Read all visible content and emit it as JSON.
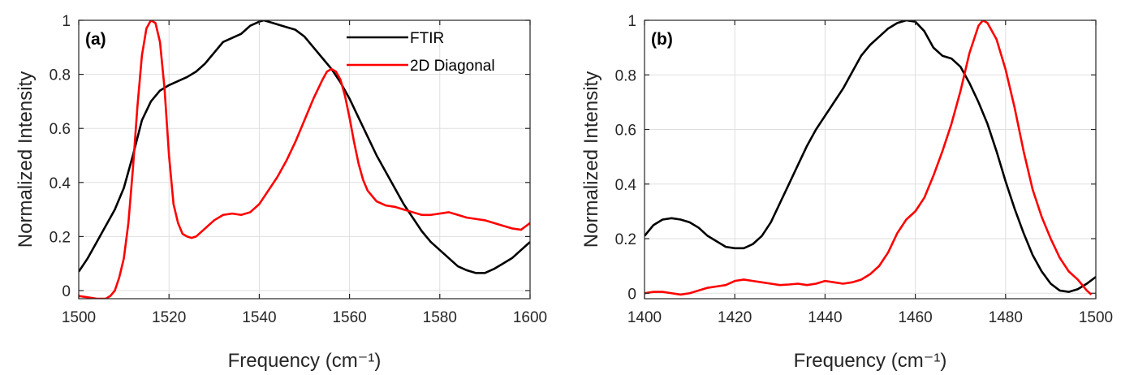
{
  "chart_data": [
    {
      "type": "line",
      "panel_label": "(a)",
      "xlabel": "Frequency (cm⁻¹)",
      "ylabel": "Normalized Intensity",
      "xlim": [
        1500,
        1600
      ],
      "ylim": [
        -0.03,
        1.0
      ],
      "xticks": [
        1500,
        1520,
        1540,
        1560,
        1580,
        1600
      ],
      "yticks": [
        0,
        0.2,
        0.4,
        0.6,
        0.8,
        1
      ],
      "ytick_labels": [
        "0",
        "0.2",
        "0.4",
        "0.6",
        "0.8",
        "1"
      ],
      "grid": true,
      "legend": "top-right",
      "series": [
        {
          "name": "FTIR",
          "color": "#000000",
          "x": [
            1500,
            1502,
            1504,
            1506,
            1508,
            1510,
            1512,
            1514,
            1516,
            1518,
            1520,
            1522,
            1524,
            1526,
            1528,
            1530,
            1532,
            1534,
            1536,
            1538,
            1540,
            1541,
            1542,
            1544,
            1546,
            1548,
            1550,
            1552,
            1554,
            1556,
            1558,
            1560,
            1562,
            1564,
            1566,
            1568,
            1570,
            1572,
            1574,
            1576,
            1578,
            1580,
            1582,
            1584,
            1586,
            1588,
            1590,
            1592,
            1594,
            1596,
            1598,
            1600
          ],
          "y": [
            0.07,
            0.12,
            0.18,
            0.24,
            0.3,
            0.38,
            0.5,
            0.63,
            0.7,
            0.74,
            0.76,
            0.775,
            0.79,
            0.81,
            0.84,
            0.88,
            0.92,
            0.935,
            0.95,
            0.98,
            0.995,
            1.0,
            0.995,
            0.985,
            0.975,
            0.965,
            0.94,
            0.9,
            0.86,
            0.82,
            0.77,
            0.71,
            0.64,
            0.57,
            0.5,
            0.44,
            0.38,
            0.32,
            0.27,
            0.22,
            0.18,
            0.15,
            0.12,
            0.09,
            0.075,
            0.065,
            0.065,
            0.08,
            0.1,
            0.12,
            0.15,
            0.18
          ]
        },
        {
          "name": "2D Diagonal",
          "color": "#ff0000",
          "x": [
            1500,
            1502,
            1504,
            1505,
            1506,
            1507,
            1508,
            1509,
            1510,
            1511,
            1512,
            1513,
            1514,
            1515,
            1516,
            1517,
            1518,
            1519,
            1520,
            1521,
            1522,
            1523,
            1524,
            1525,
            1526,
            1528,
            1530,
            1532,
            1534,
            1536,
            1538,
            1540,
            1542,
            1544,
            1546,
            1548,
            1550,
            1552,
            1554,
            1555,
            1556,
            1557,
            1558,
            1559,
            1560,
            1561,
            1562,
            1563,
            1564,
            1566,
            1568,
            1570,
            1572,
            1574,
            1576,
            1578,
            1580,
            1582,
            1584,
            1586,
            1588,
            1590,
            1592,
            1594,
            1596,
            1598,
            1600
          ],
          "y": [
            -0.02,
            -0.025,
            -0.03,
            -0.03,
            -0.03,
            -0.02,
            0.0,
            0.05,
            0.12,
            0.25,
            0.45,
            0.68,
            0.87,
            0.97,
            1.0,
            0.99,
            0.92,
            0.75,
            0.5,
            0.32,
            0.25,
            0.21,
            0.2,
            0.195,
            0.2,
            0.23,
            0.26,
            0.28,
            0.285,
            0.28,
            0.29,
            0.32,
            0.37,
            0.42,
            0.48,
            0.55,
            0.63,
            0.71,
            0.78,
            0.81,
            0.82,
            0.81,
            0.78,
            0.72,
            0.64,
            0.55,
            0.47,
            0.41,
            0.37,
            0.33,
            0.315,
            0.31,
            0.3,
            0.29,
            0.28,
            0.28,
            0.285,
            0.29,
            0.28,
            0.27,
            0.265,
            0.26,
            0.25,
            0.24,
            0.23,
            0.225,
            0.25
          ]
        }
      ]
    },
    {
      "type": "line",
      "panel_label": "(b)",
      "xlabel": "Frequency (cm⁻¹)",
      "ylabel": "Normalized Intensity",
      "xlim": [
        1400,
        1500
      ],
      "ylim": [
        -0.02,
        1.0
      ],
      "xticks": [
        1400,
        1420,
        1440,
        1460,
        1480,
        1500
      ],
      "yticks": [
        0,
        0.2,
        0.4,
        0.6,
        0.8,
        1
      ],
      "ytick_labels": [
        "0",
        "0.2",
        "0.4",
        "0.6",
        "0.8",
        "1"
      ],
      "grid": true,
      "series": [
        {
          "color": "#000000",
          "x": [
            1400,
            1402,
            1404,
            1406,
            1408,
            1410,
            1412,
            1414,
            1416,
            1418,
            1420,
            1422,
            1424,
            1426,
            1428,
            1430,
            1432,
            1434,
            1436,
            1438,
            1440,
            1442,
            1444,
            1446,
            1448,
            1450,
            1452,
            1454,
            1456,
            1458,
            1460,
            1462,
            1464,
            1466,
            1468,
            1470,
            1472,
            1474,
            1476,
            1478,
            1480,
            1482,
            1484,
            1486,
            1488,
            1490,
            1492,
            1494,
            1496,
            1498,
            1500
          ],
          "y": [
            0.21,
            0.25,
            0.27,
            0.275,
            0.27,
            0.26,
            0.24,
            0.21,
            0.19,
            0.17,
            0.165,
            0.165,
            0.18,
            0.21,
            0.26,
            0.33,
            0.4,
            0.47,
            0.54,
            0.6,
            0.65,
            0.7,
            0.75,
            0.81,
            0.87,
            0.91,
            0.94,
            0.97,
            0.99,
            1.0,
            0.995,
            0.96,
            0.9,
            0.87,
            0.86,
            0.83,
            0.77,
            0.7,
            0.62,
            0.52,
            0.41,
            0.31,
            0.22,
            0.14,
            0.08,
            0.035,
            0.01,
            0.005,
            0.015,
            0.035,
            0.06
          ]
        },
        {
          "color": "#ff0000",
          "x": [
            1400,
            1402,
            1404,
            1406,
            1408,
            1410,
            1412,
            1414,
            1416,
            1418,
            1420,
            1422,
            1424,
            1426,
            1428,
            1430,
            1432,
            1434,
            1436,
            1438,
            1440,
            1442,
            1444,
            1446,
            1448,
            1450,
            1452,
            1454,
            1456,
            1458,
            1460,
            1462,
            1464,
            1466,
            1468,
            1470,
            1472,
            1474,
            1475,
            1476,
            1478,
            1480,
            1482,
            1484,
            1486,
            1488,
            1490,
            1492,
            1494,
            1496,
            1498,
            1499
          ],
          "y": [
            0.0,
            0.005,
            0.005,
            0.0,
            -0.005,
            0.0,
            0.01,
            0.02,
            0.025,
            0.03,
            0.045,
            0.05,
            0.045,
            0.04,
            0.035,
            0.03,
            0.032,
            0.035,
            0.03,
            0.035,
            0.045,
            0.04,
            0.035,
            0.04,
            0.05,
            0.07,
            0.1,
            0.15,
            0.22,
            0.27,
            0.3,
            0.35,
            0.43,
            0.52,
            0.62,
            0.74,
            0.88,
            0.98,
            1.0,
            0.99,
            0.93,
            0.82,
            0.68,
            0.52,
            0.38,
            0.28,
            0.2,
            0.13,
            0.08,
            0.05,
            0.01,
            -0.005
          ]
        }
      ]
    }
  ]
}
